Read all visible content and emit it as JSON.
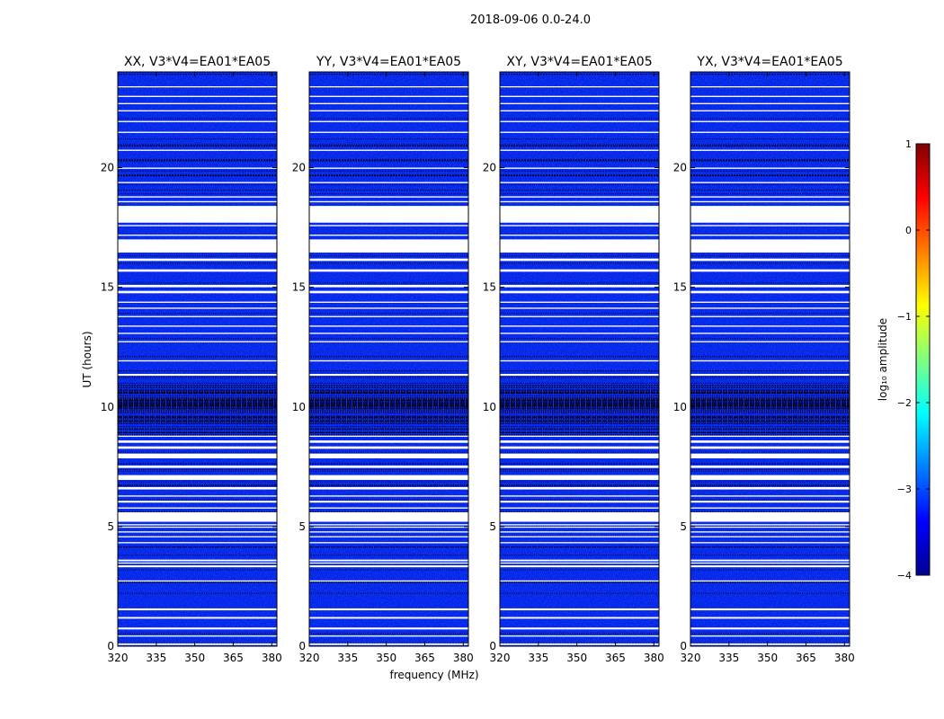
{
  "chart_data": {
    "type": "heatmap",
    "suptitle": "2018-09-06 0.0-24.0",
    "xlabel": "frequency (MHz)",
    "ylabel": "UT (hours)",
    "xlim": [
      320,
      382
    ],
    "ylim": [
      0,
      24
    ],
    "xticks": [
      320,
      335,
      350,
      365,
      380
    ],
    "yticks": [
      0,
      5,
      10,
      15,
      20
    ],
    "panels": [
      {
        "title": "XX, V3*V4=EA01*EA05"
      },
      {
        "title": "YY, V3*V4=EA01*EA05"
      },
      {
        "title": "XY, V3*V4=EA01*EA05"
      },
      {
        "title": "YX, V3*V4=EA01*EA05"
      }
    ],
    "colorbar": {
      "label": "log₁₀ amplitude",
      "range": [
        -4,
        1
      ],
      "ticks": [
        1,
        0,
        -1,
        -2,
        -3,
        -4
      ],
      "tick_labels": [
        "1",
        "0",
        "−1",
        "−2",
        "−3",
        "−4"
      ],
      "colormap": "jet"
    },
    "flagged_ut_intervals_hours": [
      [
        0.05,
        0.12
      ],
      [
        0.4,
        0.45
      ],
      [
        0.7,
        0.78
      ],
      [
        1.15,
        1.22
      ],
      [
        1.5,
        1.58
      ],
      [
        2.7,
        2.75
      ],
      [
        3.3,
        3.38
      ],
      [
        3.45,
        3.5
      ],
      [
        3.55,
        3.62
      ],
      [
        4.3,
        4.35
      ],
      [
        4.55,
        4.6
      ],
      [
        4.75,
        4.8
      ],
      [
        4.95,
        5.0
      ],
      [
        5.05,
        5.1
      ],
      [
        5.2,
        5.6
      ],
      [
        5.75,
        5.8
      ],
      [
        6.0,
        6.08
      ],
      [
        6.25,
        6.3
      ],
      [
        6.55,
        6.65
      ],
      [
        6.95,
        7.15
      ],
      [
        7.45,
        7.55
      ],
      [
        7.85,
        8.05
      ],
      [
        8.25,
        8.35
      ],
      [
        8.5,
        8.6
      ],
      [
        8.75,
        8.8
      ],
      [
        11.3,
        11.38
      ],
      [
        11.9,
        11.95
      ],
      [
        12.7,
        12.75
      ],
      [
        13.05,
        13.1
      ],
      [
        13.35,
        13.4
      ],
      [
        13.75,
        13.8
      ],
      [
        14.1,
        14.15
      ],
      [
        14.35,
        14.4
      ],
      [
        14.75,
        14.85
      ],
      [
        15.0,
        15.1
      ],
      [
        15.65,
        15.75
      ],
      [
        16.1,
        16.2
      ],
      [
        16.45,
        17.0
      ],
      [
        17.15,
        17.2
      ],
      [
        17.55,
        17.6
      ],
      [
        17.7,
        18.4
      ],
      [
        18.55,
        18.6
      ],
      [
        18.75,
        18.8
      ],
      [
        19.35,
        19.4
      ],
      [
        19.95,
        20.0
      ],
      [
        20.7,
        20.75
      ],
      [
        21.45,
        21.5
      ],
      [
        21.9,
        21.95
      ],
      [
        22.35,
        22.4
      ],
      [
        22.65,
        22.7
      ],
      [
        22.95,
        23.0
      ],
      [
        23.35,
        23.4
      ]
    ],
    "high_flag_density_ut_band_hours": [
      8.9,
      11.0
    ]
  }
}
